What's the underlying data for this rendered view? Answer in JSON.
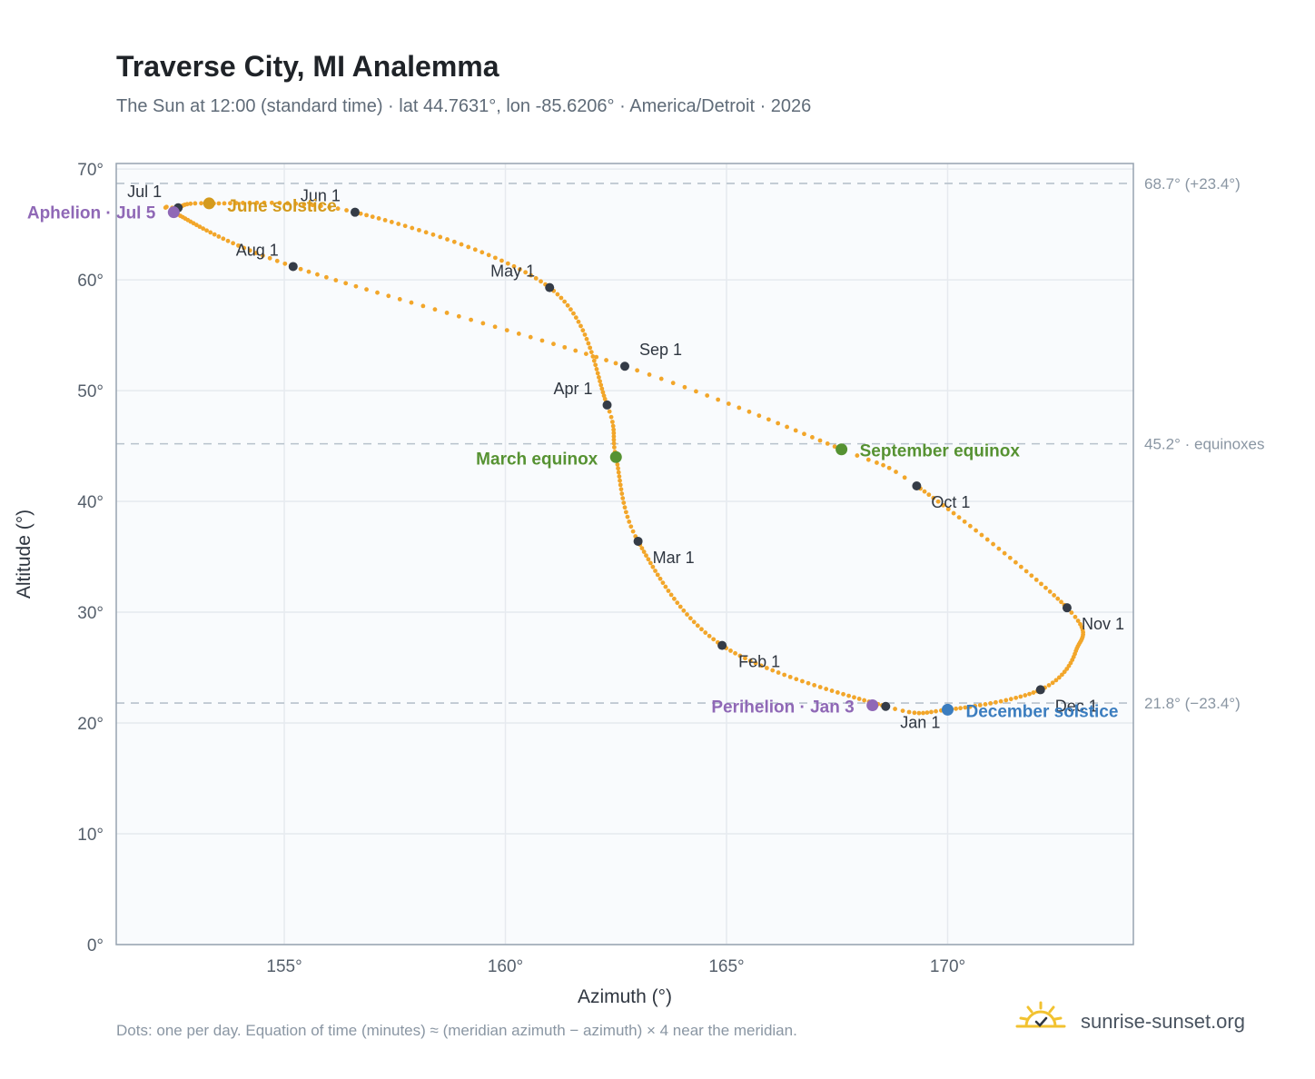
{
  "header": {
    "title": "Traverse City, MI Analemma",
    "subtitle": "The Sun at 12:00 (standard time) · lat 44.7631°, lon -85.6206° · America/Detroit · 2026"
  },
  "footer": {
    "note": "Dots: one per day. Equation of time (minutes) ≈ (meridian azimuth − azimuth) × 4 near the meridian.",
    "brand": "sunrise-sunset.org",
    "brand_icon": "sun-logo-icon"
  },
  "colors": {
    "curve": "#f2a62a",
    "month_marker": "#353c47",
    "aphelion": "#8f68b6",
    "perihelion": "#8f68b6",
    "june_solstice": "#d49a1c",
    "december_solstice": "#3b7dbf",
    "equinox": "#569232",
    "reference_line": "#b8c2cc",
    "grid": "#e6eaef",
    "plot_bg": "#f9fbfd",
    "frame": "#97a3b0"
  },
  "chart_data": {
    "type": "scatter",
    "title": "Traverse City, MI Analemma",
    "xlabel": "Azimuth (°)",
    "ylabel": "Altitude (°)",
    "xlim": [
      151.2,
      174.2
    ],
    "ylim": [
      0,
      70.5
    ],
    "xticks": [
      155,
      160,
      165,
      170
    ],
    "yticks": [
      0,
      10,
      20,
      30,
      40,
      50,
      60,
      70
    ],
    "xtick_labels": [
      "155°",
      "160°",
      "165°",
      "170°"
    ],
    "ytick_labels": [
      "0°",
      "10°",
      "20°",
      "30°",
      "40°",
      "50°",
      "60°",
      "70°"
    ],
    "grid": true,
    "reference_lines": [
      {
        "y": 68.7,
        "label": "68.7° (+23.4°)"
      },
      {
        "y": 45.2,
        "label": "45.2° · equinoxes"
      },
      {
        "y": 21.8,
        "label": "21.8° (−23.4°)"
      }
    ],
    "daily_series_anchors": [
      {
        "day": 0,
        "az": 168.6,
        "alt": 21.5
      },
      {
        "day": 31,
        "az": 164.9,
        "alt": 27.0
      },
      {
        "day": 59,
        "az": 163.0,
        "alt": 36.4
      },
      {
        "day": 78,
        "az": 162.5,
        "alt": 44.0
      },
      {
        "day": 90,
        "az": 162.3,
        "alt": 48.7
      },
      {
        "day": 120,
        "az": 161.0,
        "alt": 59.3
      },
      {
        "day": 151,
        "az": 156.6,
        "alt": 66.1
      },
      {
        "day": 171,
        "az": 153.3,
        "alt": 66.9
      },
      {
        "day": 181,
        "az": 152.6,
        "alt": 66.5
      },
      {
        "day": 185,
        "az": 152.5,
        "alt": 66.1
      },
      {
        "day": 212,
        "az": 155.2,
        "alt": 61.2
      },
      {
        "day": 243,
        "az": 162.7,
        "alt": 52.2
      },
      {
        "day": 265,
        "az": 167.6,
        "alt": 44.7
      },
      {
        "day": 273,
        "az": 169.3,
        "alt": 41.4
      },
      {
        "day": 304,
        "az": 172.7,
        "alt": 30.4
      },
      {
        "day": 320,
        "az": 172.9,
        "alt": 26.5
      },
      {
        "day": 334,
        "az": 172.1,
        "alt": 23.0
      },
      {
        "day": 354,
        "az": 170.0,
        "alt": 21.2
      },
      {
        "day": 365,
        "az": 168.6,
        "alt": 21.5
      }
    ],
    "month_markers": [
      {
        "label": "Jan 1",
        "az": 168.6,
        "alt": 21.5,
        "anchor": "start",
        "dx": 16,
        "dy": 24
      },
      {
        "label": "Feb 1",
        "az": 164.9,
        "alt": 27.0,
        "anchor": "start",
        "dx": 18,
        "dy": 24
      },
      {
        "label": "Mar 1",
        "az": 163.0,
        "alt": 36.4,
        "anchor": "start",
        "dx": 16,
        "dy": 24
      },
      {
        "label": "Apr 1",
        "az": 162.3,
        "alt": 48.7,
        "anchor": "end",
        "dx": -16,
        "dy": -12
      },
      {
        "label": "May 1",
        "az": 161.0,
        "alt": 59.3,
        "anchor": "end",
        "dx": -16,
        "dy": -12
      },
      {
        "label": "Jun 1",
        "az": 156.6,
        "alt": 66.1,
        "anchor": "end",
        "dx": -16,
        "dy": -12
      },
      {
        "label": "Jul 1",
        "az": 152.6,
        "alt": 66.5,
        "anchor": "end",
        "dx": -18,
        "dy": -12
      },
      {
        "label": "Aug 1",
        "az": 155.2,
        "alt": 61.2,
        "anchor": "end",
        "dx": -16,
        "dy": -12
      },
      {
        "label": "Sep 1",
        "az": 162.7,
        "alt": 52.2,
        "anchor": "start",
        "dx": 16,
        "dy": -12
      },
      {
        "label": "Oct 1",
        "az": 169.3,
        "alt": 41.4,
        "anchor": "start",
        "dx": 16,
        "dy": 24
      },
      {
        "label": "Nov 1",
        "az": 172.7,
        "alt": 30.4,
        "anchor": "start",
        "dx": 16,
        "dy": 24
      },
      {
        "label": "Dec 1",
        "az": 172.1,
        "alt": 23.0,
        "anchor": "start",
        "dx": 16,
        "dy": 24
      }
    ],
    "events": [
      {
        "label": "Aphelion · Jul 5",
        "az": 152.5,
        "alt": 66.1,
        "color": "#8f68b6",
        "anchor": "end",
        "dx": -20,
        "dy": 7
      },
      {
        "label": "June solstice",
        "az": 153.3,
        "alt": 66.9,
        "color": "#d49a1c",
        "anchor": "start",
        "dx": 20,
        "dy": 9
      },
      {
        "label": "March equinox",
        "az": 162.5,
        "alt": 44.0,
        "color": "#569232",
        "anchor": "end",
        "dx": -20,
        "dy": 8
      },
      {
        "label": "September equinox",
        "az": 167.6,
        "alt": 44.7,
        "color": "#569232",
        "anchor": "start",
        "dx": 20,
        "dy": 8
      },
      {
        "label": "Perihelion · Jan 3",
        "az": 168.3,
        "alt": 21.6,
        "color": "#8f68b6",
        "anchor": "end",
        "dx": -20,
        "dy": 8
      },
      {
        "label": "December solstice",
        "az": 170.0,
        "alt": 21.2,
        "color": "#3b7dbf",
        "anchor": "start",
        "dx": 20,
        "dy": 8
      }
    ]
  }
}
